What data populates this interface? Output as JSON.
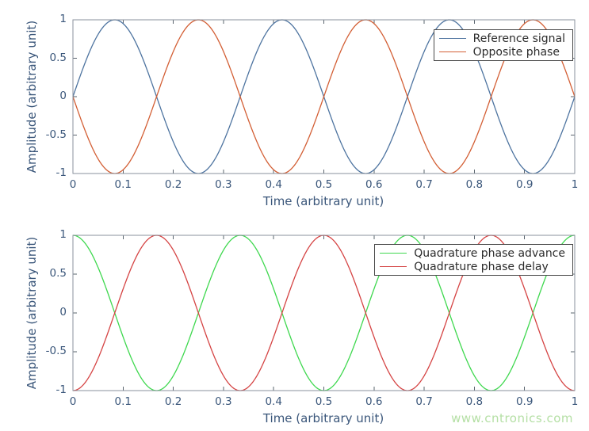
{
  "figure": {
    "watermark": {
      "text": "www.cntronics.com",
      "color": "#b4dfa4"
    }
  },
  "style": {
    "background": "#ffffff",
    "axis_border_color": "#8a929c",
    "tick_color": "#5a646e",
    "tick_label_color": "#3a567a",
    "axis_label_color": "#3a567a",
    "legend_text_color": "#2b2b2b",
    "legend_border_color": "#4a4a4a"
  },
  "chart_data": [
    {
      "type": "line",
      "title": "",
      "xlabel": "Time (arbitrary unit)",
      "ylabel": "Amplitude (arbitrary unit)",
      "xlim": [
        0,
        1
      ],
      "ylim": [
        -1,
        1
      ],
      "xticks": [
        0,
        0.1,
        0.2,
        0.3,
        0.4,
        0.5,
        0.6,
        0.7,
        0.8,
        0.9,
        1
      ],
      "xtick_labels": [
        "0",
        "0.1",
        "0.2",
        "0.3",
        "0.4",
        "0.5",
        "0.6",
        "0.7",
        "0.8",
        "0.9",
        "1"
      ],
      "yticks": [
        -1,
        -0.5,
        0,
        0.5,
        1
      ],
      "ytick_labels": [
        "-1",
        "-0.5",
        "0",
        "0.5",
        "1"
      ],
      "grid": false,
      "box": true,
      "legend_position": "upper right",
      "series": [
        {
          "name": "Reference signal",
          "color": "#4e74a0",
          "waveform": "sine",
          "amplitude": 1,
          "cycles_per_unit": 3,
          "phase_deg": 0,
          "expression": "y = sin(2π·3t)"
        },
        {
          "name": "Opposite phase",
          "color": "#d35f35",
          "waveform": "sine",
          "amplitude": 1,
          "cycles_per_unit": 3,
          "phase_deg": 180,
          "expression": "y = -sin(2π·3t)"
        }
      ]
    },
    {
      "type": "line",
      "title": "",
      "xlabel": "Time (arbitrary unit)",
      "ylabel": "Amplitude (arbitrary unit)",
      "xlim": [
        0,
        1
      ],
      "ylim": [
        -1,
        1
      ],
      "xticks": [
        0,
        0.1,
        0.2,
        0.3,
        0.4,
        0.5,
        0.6,
        0.7,
        0.8,
        0.9,
        1
      ],
      "xtick_labels": [
        "0",
        "0.1",
        "0.2",
        "0.3",
        "0.4",
        "0.5",
        "0.6",
        "0.7",
        "0.8",
        "0.9",
        "1"
      ],
      "yticks": [
        -1,
        -0.5,
        0,
        0.5,
        1
      ],
      "ytick_labels": [
        "-1",
        "-0.5",
        "0",
        "0.5",
        "1"
      ],
      "grid": false,
      "box": true,
      "legend_position": "upper right",
      "series": [
        {
          "name": "Quadrature phase advance",
          "color": "#3fd84f",
          "waveform": "sine",
          "amplitude": 1,
          "cycles_per_unit": 3,
          "phase_deg": 90,
          "expression": "y = cos(2π·3t)"
        },
        {
          "name": "Quadrature phase delay",
          "color": "#d54444",
          "waveform": "sine",
          "amplitude": 1,
          "cycles_per_unit": 3,
          "phase_deg": -90,
          "expression": "y = -cos(2π·3t)"
        }
      ]
    }
  ]
}
